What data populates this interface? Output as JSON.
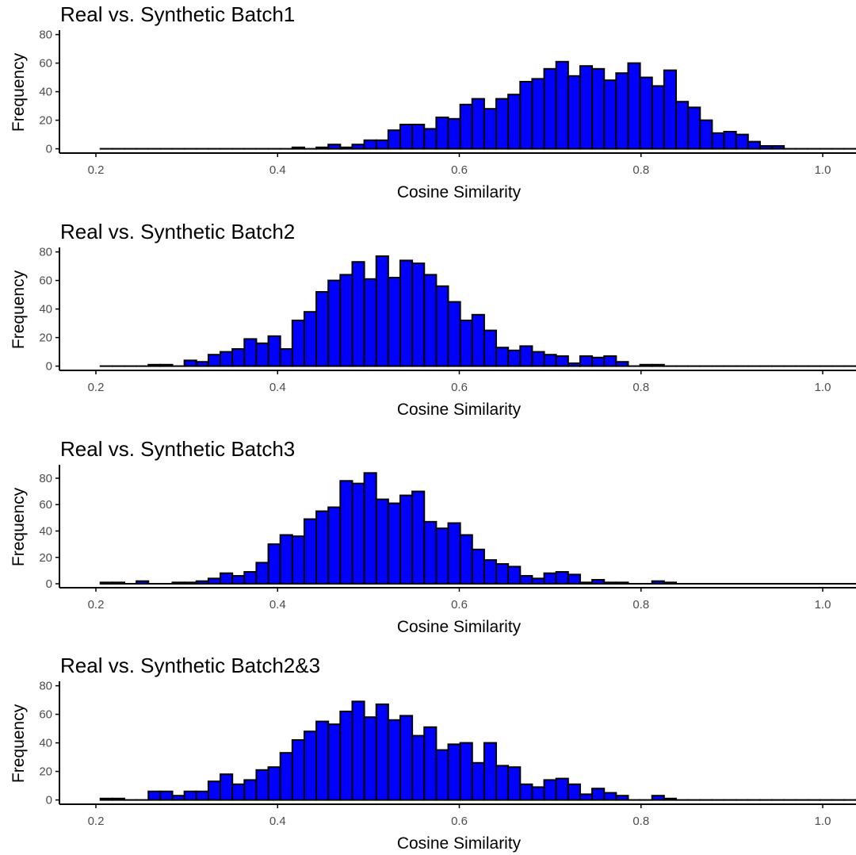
{
  "chart_data": [
    {
      "type": "bar",
      "title": "Real vs. Synthetic Batch1",
      "xlabel": "Cosine Similarity",
      "ylabel": "Frequency",
      "xlim": [
        0.16,
        1.04
      ],
      "ylim": [
        -3,
        82
      ],
      "xticks": [
        0.2,
        0.4,
        0.6,
        0.8,
        1.0
      ],
      "xtick_labels": [
        "0.2",
        "0.4",
        "0.6",
        "0.8",
        "1.0"
      ],
      "yticks": [
        0,
        20,
        40,
        60,
        80
      ],
      "ytick_labels": [
        "0",
        "20",
        "40",
        "60",
        "80"
      ],
      "bar_fill": "#0000ff",
      "bar_outline": "#000000",
      "bin_start": 0.205,
      "bin_width": 0.0132,
      "values": [
        0,
        0,
        0,
        0,
        0,
        0,
        0,
        0,
        0,
        0,
        0,
        0,
        0,
        0,
        0,
        0,
        1,
        0,
        1,
        3,
        1,
        3,
        6,
        6,
        13,
        17,
        17,
        14,
        22,
        21,
        31,
        35,
        28,
        35,
        38,
        47,
        49,
        56,
        61,
        51,
        58,
        56,
        48,
        53,
        60,
        50,
        44,
        55,
        33,
        29,
        20,
        11,
        12,
        10,
        5,
        2,
        2,
        0,
        0,
        0,
        0,
        0,
        0,
        0,
        0,
        0,
        0,
        0,
        0,
        0
      ]
    },
    {
      "type": "bar",
      "title": "Real vs. Synthetic Batch2",
      "xlabel": "Cosine Similarity",
      "ylabel": "Frequency",
      "xlim": [
        0.16,
        1.04
      ],
      "ylim": [
        -3,
        82
      ],
      "xticks": [
        0.2,
        0.4,
        0.6,
        0.8,
        1.0
      ],
      "xtick_labels": [
        "0.2",
        "0.4",
        "0.6",
        "0.8",
        "1.0"
      ],
      "yticks": [
        0,
        20,
        40,
        60,
        80
      ],
      "ytick_labels": [
        "0",
        "20",
        "40",
        "60",
        "80"
      ],
      "bar_fill": "#0000ff",
      "bar_outline": "#000000",
      "bin_start": 0.205,
      "bin_width": 0.0132,
      "values": [
        0,
        0,
        0,
        0,
        1,
        1,
        0,
        4,
        3,
        8,
        10,
        12,
        19,
        16,
        21,
        12,
        32,
        38,
        52,
        60,
        64,
        73,
        61,
        77,
        62,
        74,
        72,
        64,
        56,
        45,
        32,
        36,
        25,
        13,
        11,
        14,
        10,
        8,
        7,
        2,
        7,
        6,
        7,
        3,
        0,
        1,
        1,
        0,
        0,
        0,
        0,
        0,
        0,
        0,
        0,
        0,
        0,
        0,
        0,
        0,
        0,
        0,
        0,
        0,
        0,
        0,
        0,
        0,
        0,
        0
      ]
    },
    {
      "type": "bar",
      "title": "Real vs. Synthetic Batch3",
      "xlabel": "Cosine Similarity",
      "ylabel": "Frequency",
      "xlim": [
        0.16,
        1.04
      ],
      "ylim": [
        -3,
        89
      ],
      "xticks": [
        0.2,
        0.4,
        0.6,
        0.8,
        1.0
      ],
      "xtick_labels": [
        "0.2",
        "0.4",
        "0.6",
        "0.8",
        "1.0"
      ],
      "yticks": [
        0,
        20,
        40,
        60,
        80
      ],
      "ytick_labels": [
        "0",
        "20",
        "40",
        "60",
        "80"
      ],
      "bar_fill": "#0000ff",
      "bar_outline": "#000000",
      "bin_start": 0.205,
      "bin_width": 0.0132,
      "values": [
        1,
        1,
        0,
        2,
        0,
        0,
        1,
        1,
        2,
        4,
        8,
        6,
        9,
        16,
        30,
        37,
        36,
        49,
        55,
        58,
        78,
        76,
        84,
        64,
        61,
        67,
        70,
        47,
        42,
        46,
        37,
        26,
        18,
        15,
        13,
        6,
        4,
        8,
        9,
        7,
        1,
        3,
        1,
        1,
        0,
        0,
        2,
        1,
        0,
        0,
        0,
        0,
        0,
        0,
        0,
        0,
        0,
        0,
        0,
        0,
        0,
        0,
        0,
        0,
        0,
        0,
        0,
        0,
        0,
        0
      ]
    },
    {
      "type": "bar",
      "title": "Real vs. Synthetic Batch2&3",
      "xlabel": "Cosine Similarity",
      "ylabel": "Frequency",
      "xlim": [
        0.16,
        1.04
      ],
      "ylim": [
        -3,
        82
      ],
      "xticks": [
        0.2,
        0.4,
        0.6,
        0.8,
        1.0
      ],
      "xtick_labels": [
        "0.2",
        "0.4",
        "0.6",
        "0.8",
        "1.0"
      ],
      "yticks": [
        0,
        20,
        40,
        60,
        80
      ],
      "ytick_labels": [
        "0",
        "20",
        "40",
        "60",
        "80"
      ],
      "bar_fill": "#0000ff",
      "bar_outline": "#000000",
      "bin_start": 0.205,
      "bin_width": 0.0132,
      "values": [
        1,
        1,
        0,
        0,
        6,
        6,
        3,
        6,
        6,
        13,
        18,
        11,
        14,
        21,
        23,
        33,
        42,
        48,
        55,
        53,
        62,
        69,
        58,
        67,
        56,
        59,
        45,
        51,
        35,
        39,
        40,
        26,
        40,
        24,
        23,
        11,
        9,
        14,
        15,
        11,
        4,
        8,
        5,
        3,
        0,
        0,
        3,
        1,
        0,
        0,
        0,
        0,
        0,
        0,
        0,
        0,
        0,
        0,
        0,
        0,
        0,
        0,
        0,
        0,
        0,
        0,
        0,
        0,
        0,
        0
      ]
    }
  ]
}
